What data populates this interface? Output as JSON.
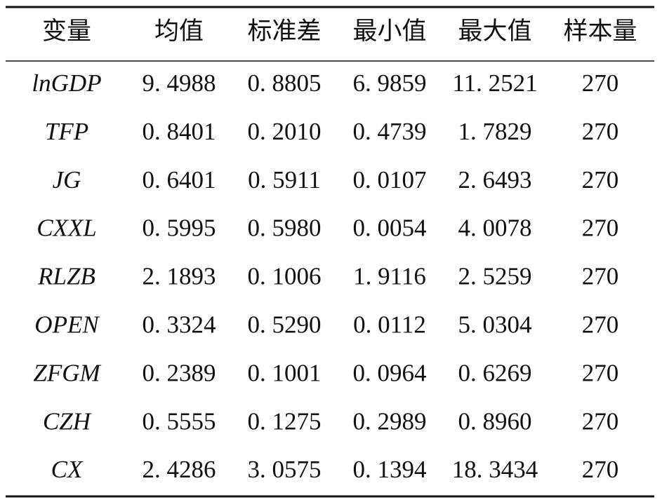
{
  "table": {
    "header": [
      "变量",
      "均值",
      "标准差",
      "最小值",
      "最大值",
      "样本量"
    ],
    "rows": [
      [
        "lnGDP",
        "9. 4988",
        "0. 8805",
        "6. 9859",
        "11. 2521",
        270
      ],
      [
        "TFP",
        "0. 8401",
        "0. 2010",
        "0. 4739",
        "1. 7829",
        270
      ],
      [
        "JG",
        "0. 6401",
        "0. 5911",
        "0. 0107",
        "2. 6493",
        270
      ],
      [
        "CXXL",
        "0. 5995",
        "0. 5980",
        "0. 0054",
        "4. 0078",
        270
      ],
      [
        "RLZB",
        "2. 1893",
        "0. 1006",
        "1. 9116",
        "2. 5259",
        270
      ],
      [
        "OPEN",
        "0. 3324",
        "0. 5290",
        "0. 0112",
        "5. 0304",
        270
      ],
      [
        "ZFGM",
        "0. 2389",
        "0. 1001",
        "0. 0964",
        "0. 6269",
        270
      ],
      [
        "CZH",
        "0. 5555",
        "0. 1275",
        "0. 2989",
        "0. 8960",
        270
      ],
      [
        "CX",
        "2. 4286",
        "3. 0575",
        "0. 1394",
        "18. 3434",
        270
      ]
    ]
  }
}
